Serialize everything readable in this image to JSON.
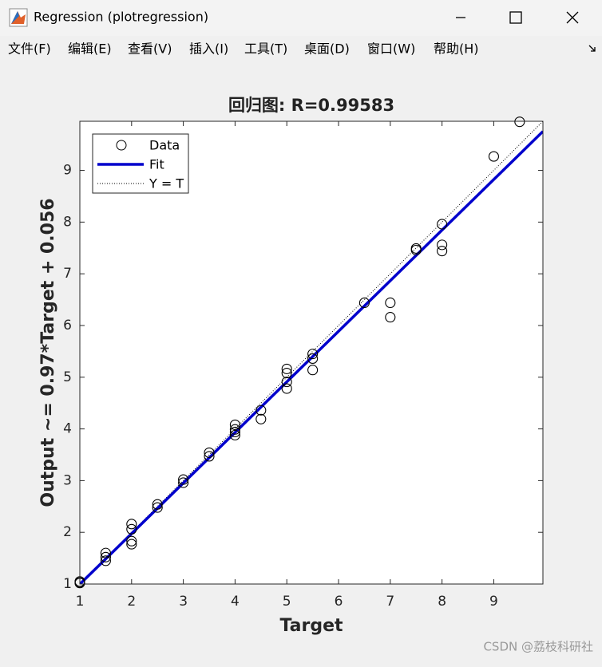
{
  "window": {
    "title": "Regression (plotregression)"
  },
  "menu": [
    "文件(F)",
    "编辑(E)",
    "查看(V)",
    "插入(I)",
    "工具(T)",
    "桌面(D)",
    "窗口(W)",
    "帮助(H)"
  ],
  "watermark": "CSDN @荔枝科研社",
  "chart_data": {
    "type": "scatter",
    "title": "回归图: R=0.99583",
    "x_label": "Target",
    "y_label": "Output ~= 0.97*Target + 0.056",
    "x": [
      1,
      1,
      1,
      1.5,
      1.5,
      1.5,
      2,
      2,
      2,
      2,
      2.5,
      2.5,
      3,
      3,
      3.5,
      3.5,
      4,
      4,
      4,
      4,
      4.5,
      4.5,
      5,
      5,
      5,
      5,
      5.5,
      5.5,
      5.5,
      6.5,
      7,
      7,
      7.5,
      7.5,
      8,
      8,
      8,
      9,
      9.5
    ],
    "series": [
      {
        "name": "Data",
        "color": "#000000",
        "values": [
          1.02,
          1.03,
          1.05,
          1.6,
          1.52,
          1.45,
          2.16,
          2.06,
          1.83,
          1.77,
          2.54,
          2.48,
          3.02,
          2.96,
          3.54,
          3.47,
          4.08,
          3.99,
          3.94,
          3.88,
          4.36,
          4.19,
          5.16,
          5.08,
          4.91,
          4.78,
          5.45,
          5.36,
          5.14,
          6.44,
          6.44,
          6.16,
          7.49,
          7.46,
          7.96,
          7.56,
          7.44,
          9.27,
          9.94
        ]
      }
    ],
    "fit_line": {
      "name": "Fit",
      "color": "#0000cc"
    },
    "identity_line": {
      "name": "Y = T",
      "color": "#000000"
    },
    "xlim": [
      1,
      9.95
    ],
    "ylim": [
      1,
      9.95
    ],
    "xticks": [
      1,
      2,
      3,
      4,
      5,
      6,
      7,
      8,
      9
    ],
    "yticks": [
      1,
      2,
      3,
      4,
      5,
      6,
      7,
      8,
      9
    ],
    "legend": "top-left"
  }
}
